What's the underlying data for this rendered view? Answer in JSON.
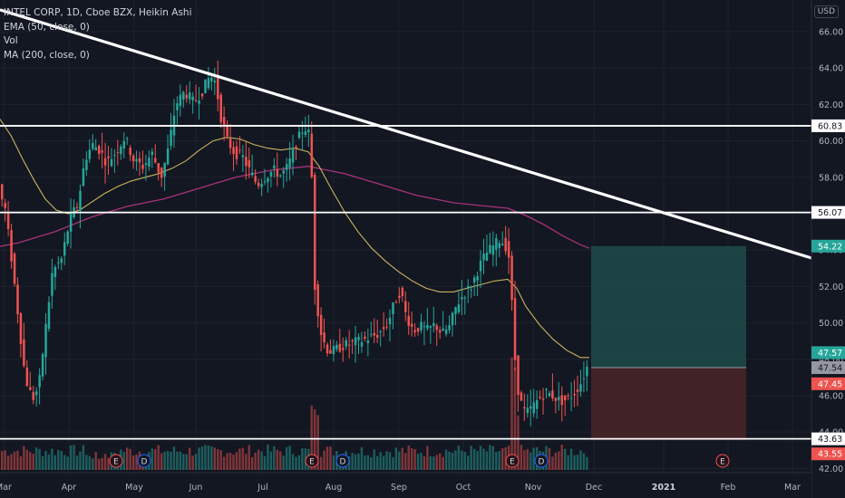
{
  "legend": {
    "symbol": "INTEL CORP, 1D, Cboe BZX, Heikin Ashi",
    "ema": "EMA (50, close, 0)",
    "vol": "Vol",
    "ma": "MA (200, close, 0)"
  },
  "currency": "USD",
  "colors": {
    "background": "#131722",
    "up": "#26a69a",
    "down": "#ef5350",
    "ema": "#c9b45e",
    "ma": "#a9327a",
    "trendline": "#ffffff",
    "target_zone": "#1f4b4a",
    "stop_zone": "#4a2428"
  },
  "chart_data": {
    "type": "candlestick",
    "title": "INTEL CORP, 1D, Cboe BZX, Heikin Ashi",
    "ylim": [
      41.4,
      67.2
    ],
    "y_ticks": [
      42.0,
      44.0,
      46.0,
      48.0,
      50.0,
      52.0,
      54.0,
      56.0,
      58.0,
      60.0,
      62.0,
      64.0,
      66.0
    ],
    "x_ticks": [
      "Mar",
      "Apr",
      "May",
      "Jun",
      "Jul",
      "Aug",
      "Sep",
      "Oct",
      "Nov",
      "Dec",
      "2021",
      "Feb",
      "Mar"
    ],
    "price_path": [
      [
        0,
        57.5
      ],
      [
        8,
        56.2
      ],
      [
        15,
        53.5
      ],
      [
        22,
        50.5
      ],
      [
        30,
        47.0
      ],
      [
        38,
        45.8
      ],
      [
        45,
        46.5
      ],
      [
        52,
        49.5
      ],
      [
        60,
        52.8
      ],
      [
        70,
        53.5
      ],
      [
        80,
        55.8
      ],
      [
        88,
        56.5
      ],
      [
        96,
        59.0
      ],
      [
        104,
        59.8
      ],
      [
        112,
        59.5
      ],
      [
        120,
        58.8
      ],
      [
        130,
        59.4
      ],
      [
        140,
        60.2
      ],
      [
        150,
        58.9
      ],
      [
        160,
        58.6
      ],
      [
        170,
        59.3
      ],
      [
        180,
        58.0
      ],
      [
        188,
        59.6
      ],
      [
        196,
        62.0
      ],
      [
        206,
        62.7
      ],
      [
        216,
        62.1
      ],
      [
        226,
        62.8
      ],
      [
        234,
        63.6
      ],
      [
        240,
        63.2
      ],
      [
        246,
        61.3
      ],
      [
        252,
        60.1
      ],
      [
        260,
        59.4
      ],
      [
        270,
        59.1
      ],
      [
        278,
        58.3
      ],
      [
        286,
        57.6
      ],
      [
        294,
        58.0
      ],
      [
        304,
        58.4
      ],
      [
        312,
        58.1
      ],
      [
        320,
        58.6
      ],
      [
        328,
        59.8
      ],
      [
        336,
        60.6
      ],
      [
        342,
        60.8
      ],
      [
        346,
        58.0
      ],
      [
        349,
        52.2
      ],
      [
        352,
        51.0
      ],
      [
        356,
        49.5
      ],
      [
        362,
        48.6
      ],
      [
        368,
        48.4
      ],
      [
        378,
        48.7
      ],
      [
        390,
        48.9
      ],
      [
        400,
        49.0
      ],
      [
        410,
        49.2
      ],
      [
        420,
        49.4
      ],
      [
        430,
        50.0
      ],
      [
        438,
        51.2
      ],
      [
        444,
        51.8
      ],
      [
        450,
        50.4
      ],
      [
        458,
        49.6
      ],
      [
        466,
        49.8
      ],
      [
        474,
        49.6
      ],
      [
        482,
        49.9
      ],
      [
        490,
        49.4
      ],
      [
        498,
        49.8
      ],
      [
        506,
        51.0
      ],
      [
        514,
        51.6
      ],
      [
        522,
        52.0
      ],
      [
        530,
        53.0
      ],
      [
        538,
        53.8
      ],
      [
        546,
        54.2
      ],
      [
        554,
        54.6
      ],
      [
        560,
        54.2
      ],
      [
        565,
        53.4
      ],
      [
        568,
        49.5
      ],
      [
        571,
        47.5
      ],
      [
        574,
        46.2
      ],
      [
        578,
        45.4
      ],
      [
        582,
        45.0
      ],
      [
        588,
        45.3
      ],
      [
        596,
        45.8
      ],
      [
        604,
        46.2
      ],
      [
        612,
        46.0
      ],
      [
        620,
        45.7
      ],
      [
        628,
        45.8
      ],
      [
        636,
        46.2
      ],
      [
        644,
        46.8
      ],
      [
        649,
        47.57
      ]
    ],
    "ema_50": [
      [
        0,
        61.2
      ],
      [
        12,
        60.3
      ],
      [
        25,
        59.0
      ],
      [
        38,
        57.8
      ],
      [
        50,
        56.8
      ],
      [
        62,
        56.2
      ],
      [
        75,
        56.0
      ],
      [
        88,
        56.2
      ],
      [
        100,
        56.6
      ],
      [
        115,
        57.1
      ],
      [
        130,
        57.5
      ],
      [
        145,
        57.8
      ],
      [
        160,
        58.0
      ],
      [
        175,
        58.2
      ],
      [
        190,
        58.5
      ],
      [
        205,
        58.9
      ],
      [
        220,
        59.5
      ],
      [
        235,
        60.0
      ],
      [
        250,
        60.2
      ],
      [
        265,
        60.1
      ],
      [
        280,
        59.8
      ],
      [
        295,
        59.6
      ],
      [
        310,
        59.5
      ],
      [
        325,
        59.6
      ],
      [
        340,
        59.4
      ],
      [
        352,
        58.6
      ],
      [
        365,
        57.4
      ],
      [
        380,
        56.1
      ],
      [
        395,
        55.0
      ],
      [
        410,
        54.1
      ],
      [
        425,
        53.4
      ],
      [
        440,
        52.8
      ],
      [
        455,
        52.3
      ],
      [
        470,
        51.9
      ],
      [
        485,
        51.7
      ],
      [
        500,
        51.7
      ],
      [
        515,
        51.9
      ],
      [
        530,
        52.1
      ],
      [
        545,
        52.3
      ],
      [
        560,
        52.4
      ],
      [
        570,
        51.9
      ],
      [
        580,
        50.9
      ],
      [
        595,
        49.9
      ],
      [
        610,
        49.1
      ],
      [
        625,
        48.5
      ],
      [
        640,
        48.1
      ],
      [
        650,
        48.1
      ]
    ],
    "ma_200": [
      [
        0,
        54.2
      ],
      [
        20,
        54.4
      ],
      [
        40,
        54.7
      ],
      [
        60,
        55.0
      ],
      [
        80,
        55.4
      ],
      [
        100,
        55.8
      ],
      [
        120,
        56.1
      ],
      [
        140,
        56.4
      ],
      [
        160,
        56.6
      ],
      [
        180,
        56.8
      ],
      [
        200,
        57.1
      ],
      [
        220,
        57.4
      ],
      [
        240,
        57.7
      ],
      [
        260,
        58.0
      ],
      [
        280,
        58.2
      ],
      [
        300,
        58.4
      ],
      [
        320,
        58.5
      ],
      [
        340,
        58.6
      ],
      [
        360,
        58.4
      ],
      [
        380,
        58.2
      ],
      [
        400,
        57.9
      ],
      [
        420,
        57.6
      ],
      [
        440,
        57.3
      ],
      [
        460,
        57.0
      ],
      [
        480,
        56.8
      ],
      [
        500,
        56.6
      ],
      [
        520,
        56.5
      ],
      [
        540,
        56.4
      ],
      [
        560,
        56.3
      ],
      [
        580,
        55.9
      ],
      [
        600,
        55.4
      ],
      [
        620,
        54.8
      ],
      [
        640,
        54.3
      ],
      [
        650,
        54.1
      ]
    ],
    "horizontal_levels": [
      60.83,
      56.07,
      43.63
    ],
    "trendline": [
      [
        0,
        67.2
      ],
      [
        932,
        53.0
      ]
    ],
    "position": {
      "entry": 47.54,
      "target": 54.22,
      "stop": 43.55,
      "x_start": 652,
      "x_end": 823
    },
    "price_labels": [
      {
        "value": 60.83,
        "text": "60.83",
        "kind": "level"
      },
      {
        "value": 56.07,
        "text": "56.07",
        "kind": "level"
      },
      {
        "value": 54.22,
        "text": "54.22",
        "kind": "target"
      },
      {
        "value": 47.57,
        "text": "47.57",
        "kind": "last"
      },
      {
        "value": 47.54,
        "text": "47.54",
        "kind": "entry"
      },
      {
        "value": 47.45,
        "text": "47.45",
        "kind": "stop-near"
      },
      {
        "value": 43.63,
        "text": "43.63",
        "kind": "level"
      },
      {
        "value": 43.55,
        "text": "43.55",
        "kind": "stop"
      }
    ],
    "events": [
      {
        "label": "E",
        "x": 128
      },
      {
        "label": "D",
        "x": 159
      },
      {
        "label": "E",
        "x": 344
      },
      {
        "label": "D",
        "x": 378
      },
      {
        "label": "E",
        "x": 565
      },
      {
        "label": "D",
        "x": 597
      },
      {
        "label": "E",
        "x": 797
      }
    ]
  }
}
